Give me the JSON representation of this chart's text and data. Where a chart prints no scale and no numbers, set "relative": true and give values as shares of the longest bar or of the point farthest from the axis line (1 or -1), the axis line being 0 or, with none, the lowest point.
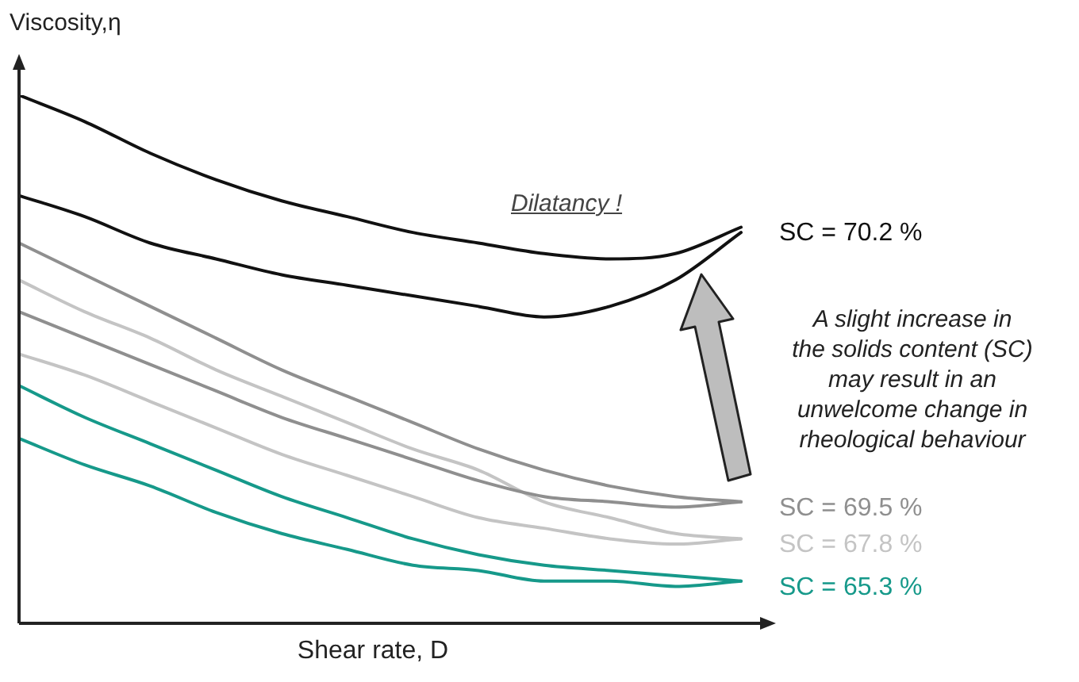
{
  "chart_data": {
    "type": "line",
    "relative": true,
    "xlabel": "Shear rate, D",
    "ylabel": "Viscosity,η",
    "marker": "none",
    "legend": false,
    "categories": [
      null,
      null,
      null,
      null,
      null,
      null,
      null,
      null,
      null,
      null,
      null,
      null
    ],
    "annotations": [
      "Dilatancy !",
      "A slight increase in\nthe solids content (SC)\nmay result in an\nunwelcome change in\nrheological behaviour"
    ],
    "series": [
      {
        "name": "SC = 70.2 %",
        "color": "#111111",
        "values": [
          1.0,
          0.95,
          0.89,
          0.84,
          0.8,
          0.77,
          0.74,
          0.72,
          0.7,
          0.69,
          0.7,
          0.75
        ]
      },
      {
        "color": "#111111",
        "values": [
          0.81,
          0.77,
          0.72,
          0.69,
          0.66,
          0.64,
          0.62,
          0.6,
          0.58,
          0.6,
          0.65,
          0.74
        ]
      },
      {
        "name": "SC = 69.5 %",
        "color": "#8f8f8f",
        "values": [
          0.72,
          0.66,
          0.6,
          0.54,
          0.48,
          0.43,
          0.38,
          0.33,
          0.29,
          0.26,
          0.24,
          0.23
        ]
      },
      {
        "color": "#8f8f8f",
        "values": [
          0.59,
          0.54,
          0.49,
          0.44,
          0.39,
          0.35,
          0.31,
          0.27,
          0.24,
          0.23,
          0.22,
          0.23
        ]
      },
      {
        "name": "SC = 67.8 %",
        "color": "#c4c4c4",
        "values": [
          0.65,
          0.59,
          0.54,
          0.48,
          0.43,
          0.38,
          0.33,
          0.29,
          0.23,
          0.2,
          0.17,
          0.16
        ]
      },
      {
        "color": "#c4c4c4",
        "values": [
          0.51,
          0.47,
          0.42,
          0.37,
          0.32,
          0.28,
          0.24,
          0.2,
          0.18,
          0.16,
          0.15,
          0.16
        ]
      },
      {
        "name": "SC = 65.3 %",
        "color": "#16998a",
        "values": [
          0.45,
          0.39,
          0.34,
          0.29,
          0.24,
          0.2,
          0.16,
          0.13,
          0.11,
          0.1,
          0.09,
          0.08
        ]
      },
      {
        "color": "#16998a",
        "values": [
          0.35,
          0.3,
          0.26,
          0.21,
          0.17,
          0.14,
          0.11,
          0.1,
          0.08,
          0.08,
          0.07,
          0.08
        ]
      }
    ]
  }
}
